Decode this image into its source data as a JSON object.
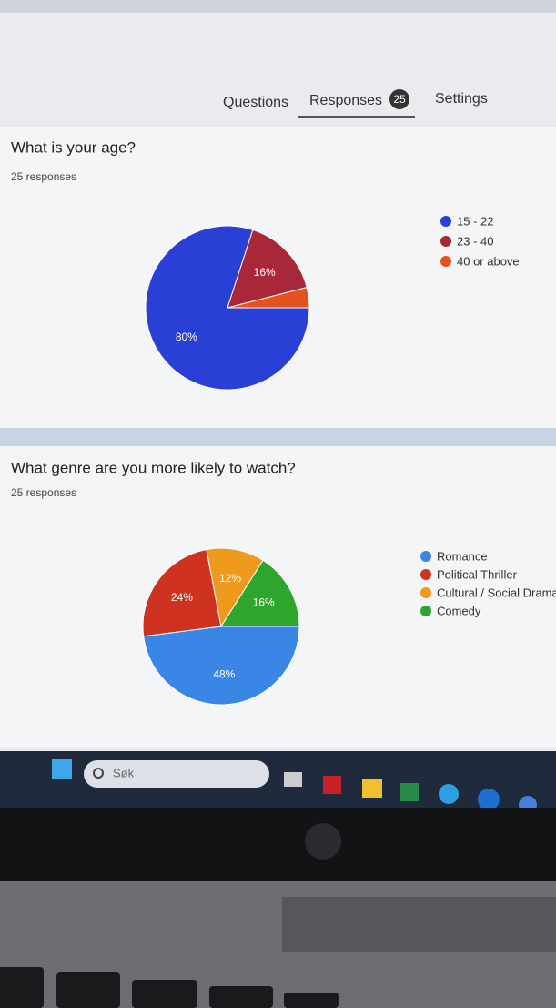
{
  "tabs": {
    "questions": "Questions",
    "responses": "Responses",
    "response_count": 25,
    "settings": "Settings"
  },
  "chart_data": [
    {
      "type": "pie",
      "title": "What is your age?",
      "subtitle": "25 responses",
      "categories": [
        "15 - 22",
        "23 - 40",
        "40 or above"
      ],
      "values": [
        80,
        16,
        4
      ],
      "value_labels": [
        "80%",
        "16%",
        null
      ],
      "colors": [
        "#2a3fd6",
        "#a8283a",
        "#e4521e"
      ]
    },
    {
      "type": "pie",
      "title": "What genre are you more likely to watch?",
      "subtitle": "25 responses",
      "categories": [
        "Romance",
        "Political Thriller",
        "Cultural / Social Drama",
        "Comedy"
      ],
      "values": [
        48,
        24,
        12,
        16
      ],
      "value_labels": [
        "48%",
        "24%",
        "12%",
        "16%"
      ],
      "colors": [
        "#3a86e6",
        "#cf3320",
        "#ee9a1c",
        "#2ea52c"
      ]
    }
  ],
  "taskbar": {
    "search_placeholder": "Søk"
  }
}
